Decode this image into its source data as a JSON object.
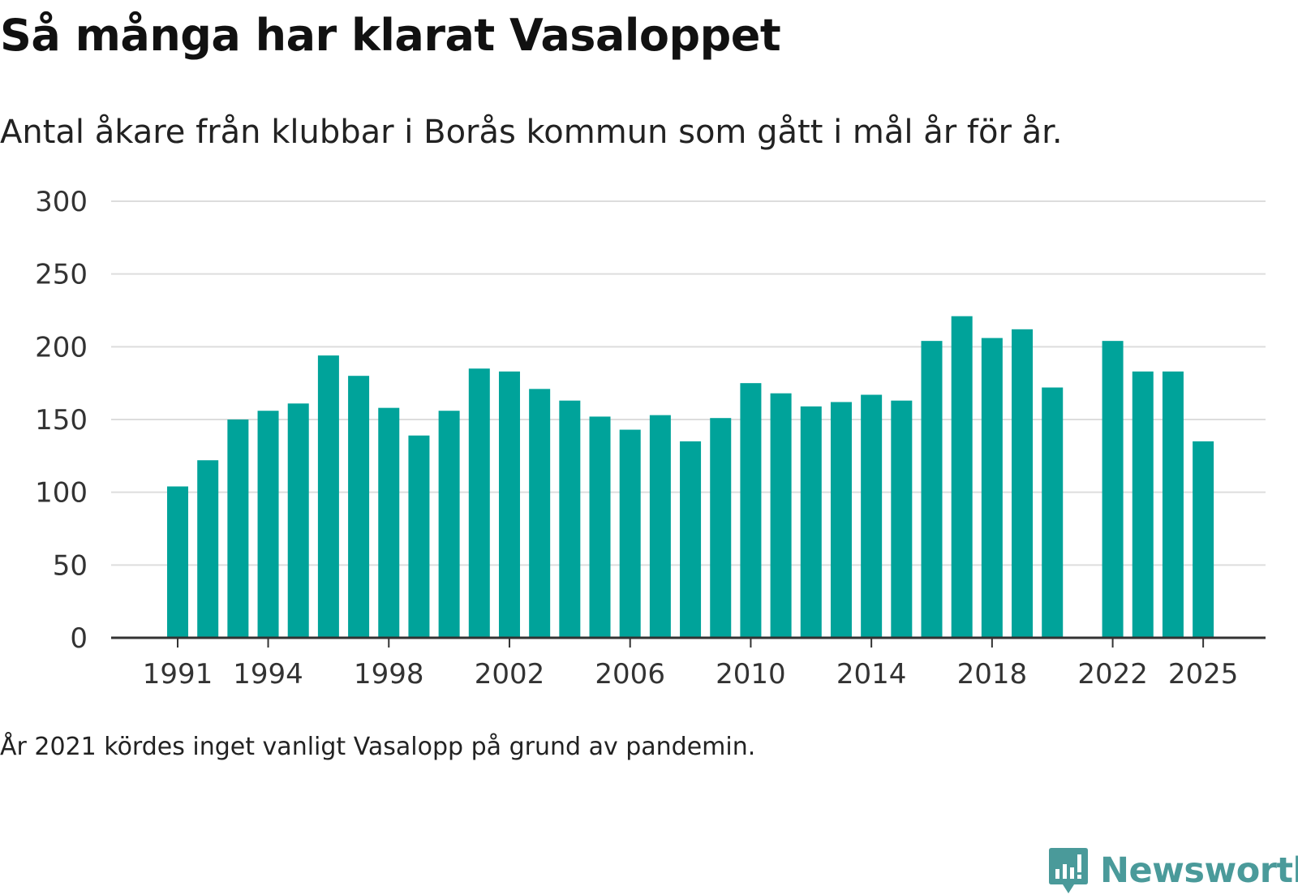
{
  "title": "Så många har klarat Vasaloppet",
  "subtitle": "Antal åkare från klubbar i Borås kommun som gått i mål år för år.",
  "note": "År 2021 kördes inget vanligt Vasalopp på grund av pandemin.",
  "brand": {
    "name": "Newsworthy",
    "color": "#4a9a9a",
    "icon": "newsworthy-logo-icon"
  },
  "colors": {
    "bar": "#00a39a",
    "grid": "#dddddd",
    "axis": "#333333"
  },
  "chart_data": {
    "type": "bar",
    "title": "Så många har klarat Vasaloppet",
    "xlabel": "",
    "ylabel": "",
    "ylim": [
      0,
      300
    ],
    "yticks": [
      "0",
      "50",
      "100",
      "150",
      "200",
      "250",
      "300"
    ],
    "xtick_labels": [
      "1991",
      "1994",
      "1998",
      "2002",
      "2006",
      "2010",
      "2014",
      "2018",
      "2022",
      "2025"
    ],
    "categories": [
      "1991",
      "1992",
      "1993",
      "1994",
      "1995",
      "1996",
      "1997",
      "1998",
      "1999",
      "2000",
      "2001",
      "2002",
      "2003",
      "2004",
      "2005",
      "2006",
      "2007",
      "2008",
      "2009",
      "2010",
      "2011",
      "2012",
      "2013",
      "2014",
      "2015",
      "2016",
      "2017",
      "2018",
      "2019",
      "2020",
      "2021",
      "2022",
      "2023",
      "2024",
      "2025"
    ],
    "values": [
      104,
      122,
      150,
      156,
      161,
      194,
      180,
      158,
      139,
      156,
      185,
      183,
      171,
      163,
      152,
      143,
      153,
      135,
      151,
      175,
      168,
      159,
      162,
      167,
      163,
      204,
      221,
      206,
      212,
      172,
      null,
      204,
      183,
      183,
      135
    ],
    "grid": true
  }
}
